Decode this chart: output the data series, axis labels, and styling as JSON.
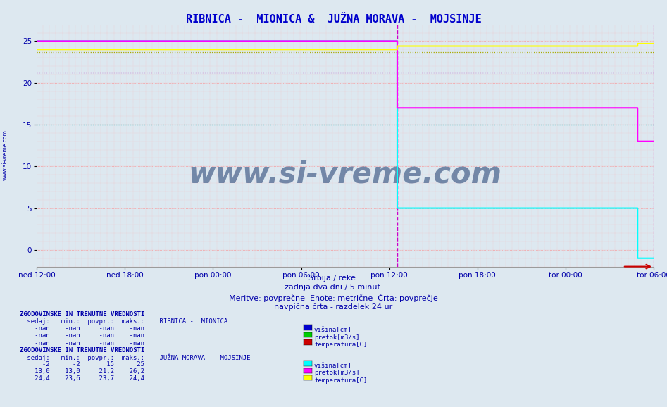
{
  "title": "RIBNICA -  MIONICA &  JUŽNA MORAVA -  MOJSINJE",
  "title_color": "#0000cc",
  "bg_color": "#dde8f0",
  "plot_bg_color": "#dde8f0",
  "xlabel": "Srbija / reke.",
  "note1": "zadnja dva dni / 5 minut.",
  "note2": "Meritve: povprečne  Enote: metrične  Črta: povprečje",
  "note3": "navpična črta - razdelek 24 ur",
  "xtick_labels": [
    "ned 12:00",
    "ned 18:00",
    "pon 00:00",
    "pon 06:00",
    "pon 12:00",
    "pon 18:00",
    "tor 00:00",
    "tor 06:00"
  ],
  "ylim": [
    -2,
    27
  ],
  "yticks": [
    0,
    5,
    10,
    15,
    20,
    25
  ],
  "n_points": 576,
  "split_idx": 336,
  "final_idx": 560,
  "jm_visina_before": 25,
  "jm_visina_after": 5,
  "jm_visina_final": -1,
  "jm_pretok_before": 25,
  "jm_pretok_after": 17.0,
  "jm_pretok_drop2": 17.0,
  "jm_pretok_final": 13.0,
  "jm_temp_before": 24.0,
  "jm_temp_after": 24.4,
  "jm_temp_final": 24.7,
  "jm_visina_avg": 15,
  "jm_pretok_avg": 21.2,
  "jm_temp_avg": 23.7,
  "color_visina": "#00ffff",
  "color_pretok": "#ff00ff",
  "color_temp": "#ffff00",
  "color_avg_visina": "#00aaaa",
  "color_avg_pretok": "#aa00aa",
  "color_avg_temp": "#aaaa00",
  "vline_color": "#cc00cc",
  "arrow_color": "#cc0000",
  "watermark": "www.si-vreme.com",
  "watermark_color": "#1a3a6e",
  "legend1_title": "RIBNICA -  MIONICA",
  "legend2_title": "JUŽNA MORAVA -  MOJSINJE",
  "text_color": "#0000aa",
  "sidebar_color": "#0000aa",
  "grid_fine_color": "#ffb0b0",
  "grid_coarse_color": "#ff8080"
}
